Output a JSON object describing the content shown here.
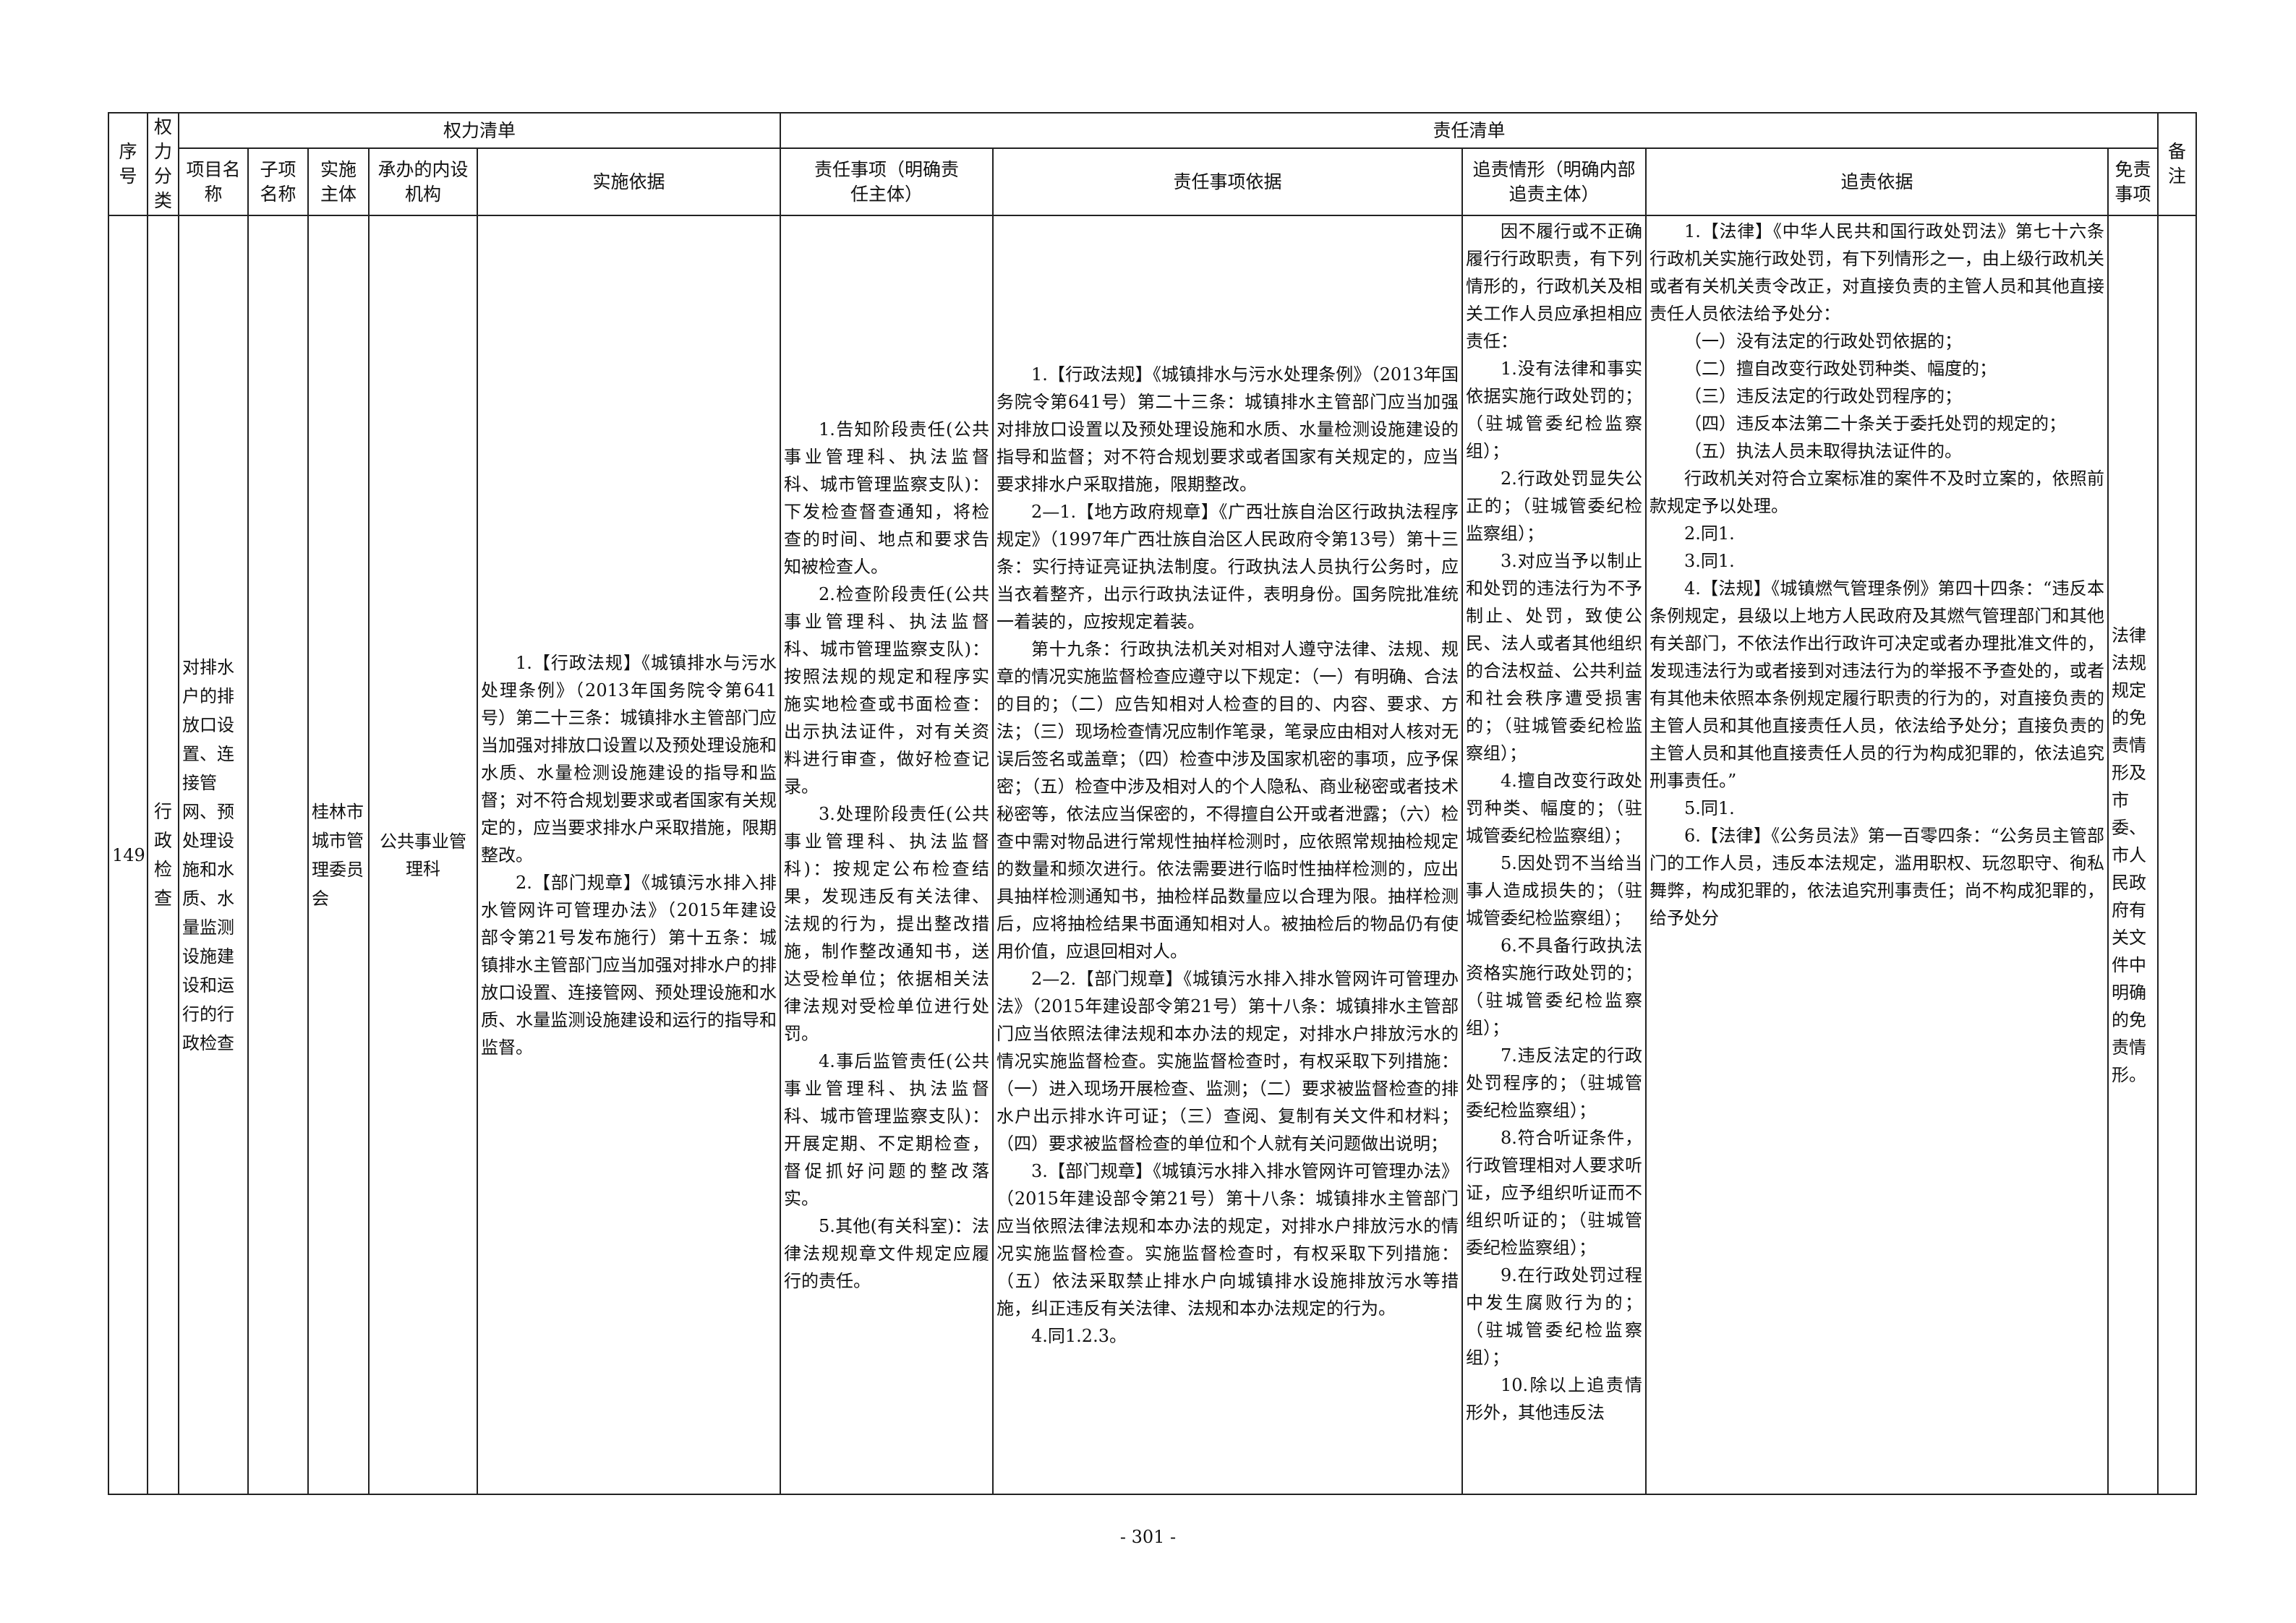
{
  "header": {
    "seq": "序号",
    "category": "权力分类",
    "power_list": "权力清单",
    "responsibility_list": "责任清单",
    "item_name": "项目名称",
    "sub_item_name": "子项名称",
    "subject": "实施主体",
    "internal_org": "承办的内设机构",
    "basis": "实施依据",
    "resp_items": "责任事项（明确责任主体）",
    "resp_basis": "责任事项依据",
    "accountability": "追责情形（明确内部追责主体）",
    "accountability_basis": "追责依据",
    "exemption": "免责事项",
    "remarks": "备注"
  },
  "row": {
    "seq": "149",
    "category": "行政检查",
    "item_name": "对排水户的排放口设置、连接管网、预处理设施和水质、水量监测设施建设和运行的行政检查",
    "sub_item_name": "",
    "subject": "桂林市城市管理委员会",
    "internal_org": "公共事业管理科",
    "basis": [
      "1.【行政法规】《城镇排水与污水处理条例》（2013年国务院令第641号）第二十三条：城镇排水主管部门应当加强对排放口设置以及预处理设施和水质、水量检测设施建设的指导和监督；对不符合规划要求或者国家有关规定的，应当要求排水户采取措施，限期整改。",
      "2.【部门规章】《城镇污水排入排水管网许可管理办法》（2015年建设部令第21号发布施行）第十五条：城镇排水主管部门应当加强对排水户的排放口设置、连接管网、预处理设施和水质、水量监测设施建设和运行的指导和监督。"
    ],
    "resp_items": [
      "1.告知阶段责任(公共事业管理科、执法监督科、城市管理监察支队)：下发检查督查通知，将检查的时间、地点和要求告知被检查人。",
      "2.检查阶段责任(公共事业管理科、执法监督科、城市管理监察支队)：按照法规的规定和程序实施实地检查或书面检查：出示执法证件，对有关资料进行审查，做好检查记录。",
      "3.处理阶段责任(公共事业管理科、执法监督科)：按规定公布检查结果，发现违反有关法律、法规的行为，提出整改措施，制作整改通知书，送达受检单位；依据相关法律法规对受检单位进行处罚。",
      "4.事后监管责任(公共事业管理科、执法监督科、城市管理监察支队)：开展定期、不定期检查，督促抓好问题的整改落实。",
      "5.其他(有关科室)：法律法规规章文件规定应履行的责任。"
    ],
    "resp_basis": [
      "1.【行政法规】《城镇排水与污水处理条例》（2013年国务院令第641号）第二十三条：城镇排水主管部门应当加强对排放口设置以及预处理设施和水质、水量检测设施建设的指导和监督；对不符合规划要求或者国家有关规定的，应当要求排水户采取措施，限期整改。",
      "2—1.【地方政府规章】《广西壮族自治区行政执法程序规定》（1997年广西壮族自治区人民政府令第13号）第十三条：实行持证亮证执法制度。行政执法人员执行公务时，应当衣着整齐，出示行政执法证件，表明身份。国务院批准统一着装的，应按规定着装。",
      "第十九条：行政执法机关对相对人遵守法律、法规、规章的情况实施监督检查应遵守以下规定：（一）有明确、合法的目的；（二）应告知相对人检查的目的、内容、要求、方法；（三）现场检查情况应制作笔录，笔录应由相对人核对无误后签名或盖章；（四）检查中涉及国家机密的事项，应予保密；（五）检查中涉及相对人的个人隐私、商业秘密或者技术秘密等，依法应当保密的，不得擅自公开或者泄露；（六）检查中需对物品进行常规性抽样检测时，应依照常规抽检规定的数量和频次进行。依法需要进行临时性抽样检测的，应出具抽样检测通知书，抽检样品数量应以合理为限。抽样检测后，应将抽检结果书面通知相对人。被抽检后的物品仍有使用价值，应退回相对人。",
      "2—2.【部门规章】《城镇污水排入排水管网许可管理办法》（2015年建设部令第21号）第十八条：城镇排水主管部门应当依照法律法规和本办法的规定，对排水户排放污水的情况实施监督检查。实施监督检查时，有权采取下列措施：（一）进入现场开展检查、监测；（二）要求被监督检查的排水户出示排水许可证；（三）查阅、复制有关文件和材料；（四）要求被监督检查的单位和个人就有关问题做出说明；",
      "3.【部门规章】《城镇污水排入排水管网许可管理办法》（2015年建设部令第21号）第十八条：城镇排水主管部门应当依照法律法规和本办法的规定，对排水户排放污水的情况实施监督检查。实施监督检查时，有权采取下列措施：（五）依法采取禁止排水户向城镇排水设施排放污水等措施，纠正违反有关法律、法规和本办法规定的行为。",
      "4.同1.2.3。"
    ],
    "accountability": [
      "因不履行或不正确履行行政职责，有下列情形的，行政机关及相关工作人员应承担相应责任：",
      "1.没有法律和事实依据实施行政处罚的；（驻城管委纪检监察组）；",
      "2.行政处罚显失公正的；（驻城管委纪检监察组）；",
      "3.对应当予以制止和处罚的违法行为不予制止、处罚，致使公民、法人或者其他组织的合法权益、公共利益和社会秩序遭受损害的；（驻城管委纪检监察组）；",
      "4.擅自改变行政处罚种类、幅度的；（驻城管委纪检监察组）；",
      "5.因处罚不当给当事人造成损失的；（驻城管委纪检监察组）；",
      "6.不具备行政执法资格实施行政处罚的；（驻城管委纪检监察组）；",
      "7.违反法定的行政处罚程序的；（驻城管委纪检监察组）；",
      "8.符合听证条件，行政管理相对人要求听证，应予组织听证而不组织听证的；（驻城管委纪检监察组）；",
      "9.在行政处罚过程中发生腐败行为的；（驻城管委纪检监察组）；",
      "10.除以上追责情形外，其他违反法"
    ],
    "accountability_basis": [
      "1.【法律】《中华人民共和国行政处罚法》第七十六条 行政机关实施行政处罚，有下列情形之一，由上级行政机关或者有关机关责令改正，对直接负责的主管人员和其他直接责任人员依法给予处分：",
      "（一）没有法定的行政处罚依据的；",
      "（二）擅自改变行政处罚种类、幅度的；",
      "（三）违反法定的行政处罚程序的；",
      "（四）违反本法第二十条关于委托处罚的规定的；",
      "（五）执法人员未取得执法证件的。",
      "行政机关对符合立案标准的案件不及时立案的，依照前款规定予以处理。",
      "2.同1.",
      "3.同1.",
      "4.【法规】《城镇燃气管理条例》第四十四条：“违反本条例规定，县级以上地方人民政府及其燃气管理部门和其他有关部门，不依法作出行政许可决定或者办理批准文件的，发现违法行为或者接到对违法行为的举报不予查处的，或者有其他未依照本条例规定履行职责的行为的，对直接负责的主管人员和其他直接责任人员，依法给予处分；直接负责的主管人员和其他直接责任人员的行为构成犯罪的，依法追究刑事责任。”",
      "5.同1.",
      "6.【法律】《公务员法》第一百零四条：“公务员主管部门的工作人员，违反本法规定，滥用职权、玩忽职守、徇私舞弊，构成犯罪的，依法追究刑事责任；尚不构成犯罪的，给予处分"
    ],
    "exemption": "法律法规规定的免责情形及市委、市人民政府有关文件中明确的免责情形。",
    "remarks": ""
  },
  "footer": {
    "page_number": "- 301 -"
  }
}
